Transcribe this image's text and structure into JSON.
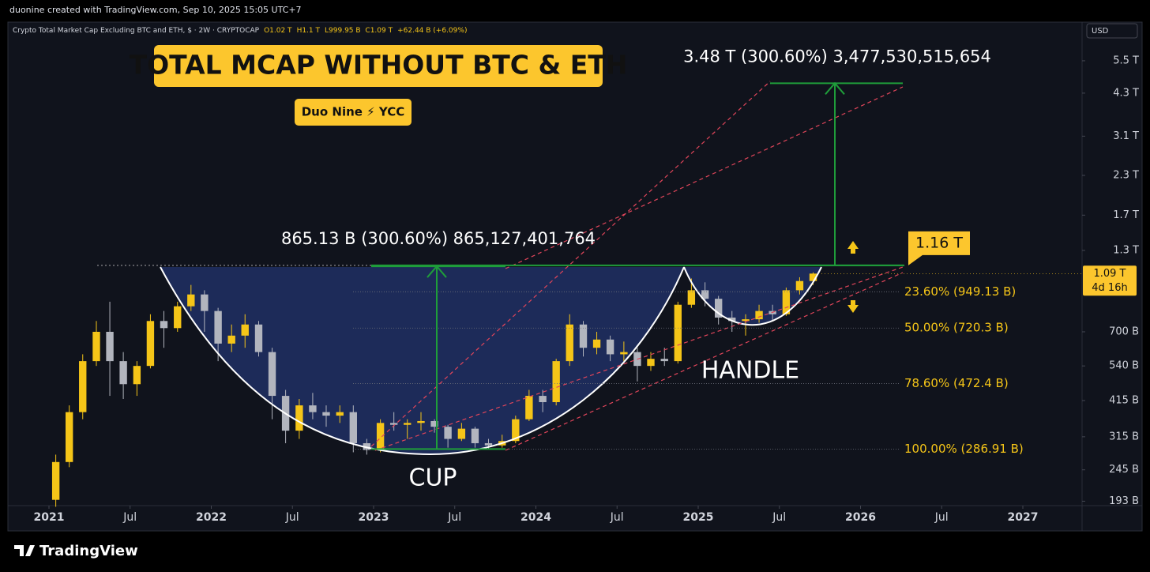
{
  "header": {
    "creator": "duonine created with TradingView.com, Sep 10, 2025 15:05 UTC+7",
    "symbol": "Crypto Total Market Cap Excluding BTC and ETH, $ · 2W · CRYPTOCAP",
    "ohlc": [
      "O1.02 T",
      "H1.1 T",
      "L999.95 B",
      "C1.09 T",
      "+62.44 B (+6.09%)"
    ]
  },
  "chart_data": {
    "type": "candlestick",
    "title": "TOTAL MCAP WITHOUT BTC & ETH",
    "subtitle": "Duo Nine ⚡ YCC",
    "currency": "USD",
    "x": [
      2021.042,
      2021.125,
      2021.208,
      2021.292,
      2021.375,
      2021.458,
      2021.542,
      2021.625,
      2021.708,
      2021.792,
      2021.875,
      2021.958,
      2022.042,
      2022.125,
      2022.208,
      2022.292,
      2022.375,
      2022.458,
      2022.542,
      2022.625,
      2022.708,
      2022.792,
      2022.875,
      2022.958,
      2023.042,
      2023.125,
      2023.208,
      2023.292,
      2023.375,
      2023.458,
      2023.542,
      2023.625,
      2023.708,
      2023.792,
      2023.875,
      2023.958,
      2024.042,
      2024.125,
      2024.208,
      2024.292,
      2024.375,
      2024.458,
      2024.542,
      2024.625,
      2024.708,
      2024.792,
      2024.875,
      2024.958,
      2025.042,
      2025.125,
      2025.208,
      2025.292,
      2025.375,
      2025.458,
      2025.542,
      2025.625,
      2025.708
    ],
    "open": [
      195,
      260,
      380,
      560,
      700,
      560,
      470,
      540,
      760,
      720,
      850,
      930,
      820,
      640,
      680,
      740,
      600,
      430,
      330,
      400,
      380,
      370,
      380,
      300,
      285,
      350,
      345,
      350,
      355,
      340,
      310,
      335,
      300,
      295,
      305,
      360,
      430,
      410,
      560,
      740,
      620,
      660,
      590,
      600,
      540,
      570,
      560,
      860,
      960,
      900,
      780,
      760,
      770,
      820,
      800,
      960,
      1030
    ],
    "high": [
      275,
      400,
      590,
      760,
      880,
      600,
      560,
      800,
      820,
      880,
      1000,
      960,
      840,
      740,
      800,
      760,
      620,
      450,
      420,
      440,
      400,
      400,
      400,
      310,
      360,
      380,
      360,
      380,
      360,
      345,
      350,
      340,
      310,
      320,
      370,
      450,
      450,
      570,
      800,
      760,
      700,
      680,
      650,
      620,
      600,
      620,
      880,
      1050,
      1020,
      920,
      820,
      800,
      860,
      860,
      980,
      1060,
      1100
    ],
    "low": [
      185,
      250,
      360,
      540,
      430,
      420,
      430,
      530,
      620,
      700,
      820,
      700,
      560,
      600,
      620,
      580,
      360,
      300,
      310,
      360,
      340,
      350,
      280,
      275,
      280,
      330,
      310,
      330,
      325,
      290,
      305,
      290,
      288,
      290,
      300,
      355,
      380,
      400,
      540,
      580,
      590,
      560,
      560,
      480,
      520,
      540,
      550,
      840,
      850,
      740,
      700,
      680,
      750,
      760,
      790,
      930,
      999.95
    ],
    "close": [
      260,
      380,
      560,
      700,
      560,
      470,
      540,
      760,
      720,
      850,
      930,
      820,
      640,
      680,
      740,
      600,
      430,
      330,
      400,
      380,
      370,
      380,
      300,
      285,
      350,
      345,
      350,
      355,
      340,
      310,
      335,
      300,
      295,
      305,
      360,
      430,
      410,
      560,
      740,
      620,
      660,
      590,
      600,
      540,
      570,
      560,
      860,
      960,
      900,
      780,
      760,
      770,
      820,
      800,
      960,
      1030,
      1090
    ],
    "up_color": "#f5c518",
    "down_color": "#b2b5be",
    "xlim": [
      2020.747,
      2027.365
    ],
    "xticks": [
      2021,
      {
        "value": 2021.5,
        "label": "Jul"
      },
      2022,
      {
        "value": 2022.5,
        "label": "Jul"
      },
      2023,
      {
        "value": 2023.5,
        "label": "Jul"
      },
      2024,
      {
        "value": 2024.5,
        "label": "Jul"
      },
      2025,
      {
        "value": 2025.5,
        "label": "Jul"
      },
      2026,
      {
        "value": 2026.5,
        "label": "Jul"
      },
      2027
    ],
    "ylim": [
      186.6,
      7380
    ],
    "log_scale": true,
    "yticks": [
      {
        "value": 5500,
        "label": "5.5 T"
      },
      {
        "value": 4300,
        "label": "4.3 T"
      },
      {
        "value": 3100,
        "label": "3.1 T"
      },
      {
        "value": 2300,
        "label": "2.3 T"
      },
      {
        "value": 1700,
        "label": "1.7 T"
      },
      {
        "value": 1300,
        "label": "1.3 T"
      },
      {
        "value": 700,
        "label": "700 B"
      },
      {
        "value": 540,
        "label": "540 B"
      },
      {
        "value": 415,
        "label": "415 B"
      },
      {
        "value": 315,
        "label": "315 B"
      },
      {
        "value": 245,
        "label": "245 B"
      },
      {
        "value": 193,
        "label": "193 B"
      }
    ],
    "fibs": [
      {
        "value": 949.13,
        "label": "23.60% (949.13 B)"
      },
      {
        "value": 720.3,
        "label": "50.00% (720.3 B)"
      },
      {
        "value": 472.4,
        "label": "78.60% (472.4 B)"
      },
      {
        "value": 286.91,
        "label": "100.00% (286.91 B)"
      }
    ],
    "neckline": {
      "value": 1160,
      "label": "1.16 T"
    },
    "cup_measure": {
      "change": 865.127401764,
      "label": "865.13 B (300.60%) 865,127,401,764"
    },
    "target_measure": {
      "change": 3477.530515654,
      "label": "3.48 T (300.60%) 3,477,530,515,654"
    },
    "last_price": {
      "value": 1090,
      "label": "1.09 T",
      "countdown": "4d 16h"
    },
    "annotations": [
      "CUP",
      "HANDLE"
    ]
  },
  "footer": {
    "brand": "TradingView"
  }
}
